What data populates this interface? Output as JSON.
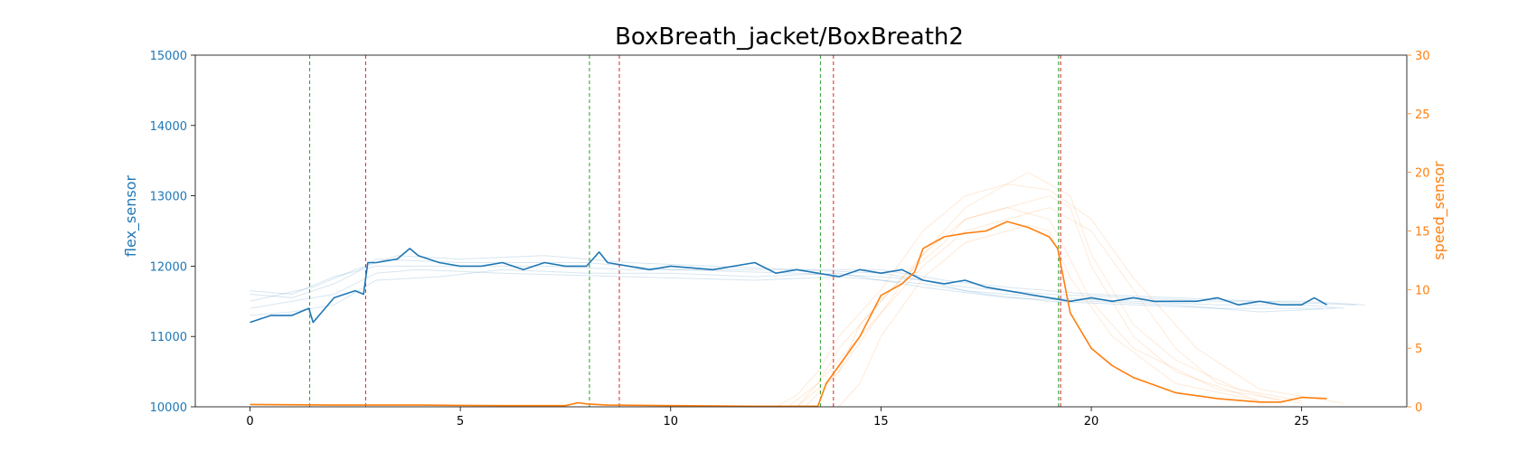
{
  "chart_data": {
    "type": "line",
    "title": "BoxBreath_jacket/BoxBreath2",
    "xlabel": "",
    "ylabel_left": "flex_sensor",
    "ylabel_right": "speed_sensor",
    "xlim": [
      -1.3,
      27.5
    ],
    "ylim_left": [
      10000,
      15000
    ],
    "ylim_right": [
      0,
      30
    ],
    "xticks": [
      0,
      5,
      10,
      15,
      20,
      25
    ],
    "yticks_left": [
      10000,
      11000,
      12000,
      13000,
      14000,
      15000
    ],
    "yticks_right": [
      0,
      5,
      10,
      15,
      20,
      25,
      30
    ],
    "grid": false,
    "colors": {
      "left_axis": "#1f77b4",
      "right_axis": "#ff7f0e",
      "green_marker": "#2ca02c",
      "red_marker": "#d62728"
    },
    "vlines": [
      {
        "x": 1.42,
        "color": "green"
      },
      {
        "x": 2.75,
        "color": "red"
      },
      {
        "x": 8.07,
        "color": "green"
      },
      {
        "x": 8.78,
        "color": "red"
      },
      {
        "x": 13.56,
        "color": "green"
      },
      {
        "x": 13.87,
        "color": "red"
      },
      {
        "x": 19.22,
        "color": "green"
      },
      {
        "x": 19.27,
        "color": "red"
      }
    ],
    "series": [
      {
        "axis": "left",
        "color": "#1f77b4",
        "x": [
          0,
          0.5,
          1.0,
          1.4,
          1.5,
          2.0,
          2.5,
          2.7,
          2.8,
          3.0,
          3.5,
          3.8,
          4.0,
          4.5,
          5.0,
          5.5,
          6.0,
          6.5,
          7.0,
          7.5,
          8.0,
          8.3,
          8.5,
          9.0,
          9.5,
          10.0,
          11.0,
          12.0,
          12.5,
          13.0,
          13.5,
          14.0,
          14.5,
          15.0,
          15.5,
          16.0,
          16.5,
          17.0,
          17.5,
          18.0,
          18.5,
          19.0,
          19.5,
          20.0,
          20.5,
          21.0,
          21.5,
          22.0,
          22.5,
          23.0,
          23.5,
          24.0,
          24.5,
          25.0,
          25.3,
          25.6
        ],
        "y": [
          11200,
          11300,
          11300,
          11400,
          11200,
          11550,
          11650,
          11600,
          12050,
          12050,
          12100,
          12250,
          12150,
          12050,
          12000,
          12000,
          12050,
          11950,
          12050,
          12000,
          12000,
          12200,
          12050,
          12000,
          11950,
          12000,
          11950,
          12050,
          11900,
          11950,
          11900,
          11850,
          11950,
          11900,
          11950,
          11800,
          11750,
          11800,
          11700,
          11650,
          11600,
          11550,
          11500,
          11550,
          11500,
          11550,
          11500,
          11500,
          11500,
          11550,
          11450,
          11500,
          11450,
          11450,
          11550,
          11450
        ]
      },
      {
        "axis": "right",
        "color": "#ff7f0e",
        "x": [
          0,
          2,
          4,
          6,
          7.5,
          7.8,
          8.0,
          8.5,
          10,
          12,
          13.5,
          13.7,
          14.0,
          14.5,
          15.0,
          15.5,
          15.8,
          16.0,
          16.5,
          17.0,
          17.5,
          18.0,
          18.5,
          19.0,
          19.2,
          19.5,
          20.0,
          20.5,
          21.0,
          22.0,
          23.0,
          24.0,
          24.5,
          25.0,
          25.6
        ],
        "y": [
          0.2,
          0.15,
          0.15,
          0.1,
          0.1,
          0.35,
          0.25,
          0.15,
          0.1,
          0.05,
          0.05,
          2,
          3.5,
          6,
          9.5,
          10.5,
          11.5,
          13.5,
          14.5,
          14.8,
          15,
          15.8,
          15.3,
          14.5,
          13.5,
          8,
          5,
          3.5,
          2.5,
          1.2,
          0.7,
          0.4,
          0.4,
          0.8,
          0.7
        ]
      }
    ],
    "background_traces": {
      "left": [
        {
          "x": [
            0,
            1,
            2,
            2.5,
            3,
            5,
            8,
            10,
            13,
            15,
            16,
            17,
            19,
            21,
            23,
            25,
            26
          ],
          "y": [
            11600,
            11550,
            11750,
            11900,
            12100,
            12050,
            12050,
            11950,
            11900,
            11850,
            11800,
            11650,
            11550,
            11500,
            11450,
            11450,
            11400
          ]
        },
        {
          "x": [
            0,
            1,
            2,
            3,
            4,
            6,
            9,
            12,
            14,
            16,
            17.5,
            19,
            21,
            23,
            25.5
          ],
          "y": [
            11400,
            11500,
            11600,
            11900,
            11950,
            11900,
            11850,
            11800,
            11850,
            11750,
            11600,
            11500,
            11450,
            11400,
            11400
          ]
        },
        {
          "x": [
            0,
            1.5,
            2.5,
            3.5,
            5,
            7,
            9,
            11,
            13,
            15,
            16.5,
            18,
            20,
            22,
            24,
            26.3
          ],
          "y": [
            11500,
            11700,
            11950,
            12150,
            12100,
            12150,
            12050,
            12000,
            11950,
            11950,
            11800,
            11700,
            11600,
            11550,
            11500,
            11450
          ]
        },
        {
          "x": [
            0,
            1,
            2,
            3,
            4.5,
            6,
            8,
            10,
            12,
            14,
            16,
            18,
            20,
            22,
            24,
            25.8
          ],
          "y": [
            11300,
            11350,
            11450,
            11800,
            11850,
            11950,
            11900,
            11900,
            11850,
            11900,
            11700,
            11550,
            11500,
            11450,
            11350,
            11400
          ]
        },
        {
          "x": [
            0,
            1,
            2,
            3,
            5,
            7,
            9,
            11,
            13,
            15,
            17,
            19,
            21,
            23,
            25,
            26.5
          ],
          "y": [
            11650,
            11600,
            11850,
            12000,
            12000,
            12000,
            11950,
            11950,
            11950,
            11900,
            11700,
            11600,
            11550,
            11500,
            11500,
            11450
          ]
        }
      ],
      "right": [
        {
          "x": [
            12.5,
            13,
            13.5,
            14,
            15,
            16,
            17,
            18,
            18.5,
            19,
            19.5,
            20,
            21,
            22,
            23.5,
            25
          ],
          "y": [
            0,
            1,
            3,
            6,
            10,
            15,
            18,
            19,
            20,
            19,
            18,
            13,
            7,
            4,
            1.5,
            0.5
          ]
        },
        {
          "x": [
            13,
            13.5,
            14,
            15,
            16,
            17,
            18,
            19,
            19.5,
            20,
            21,
            22,
            24
          ],
          "y": [
            0,
            2,
            5,
            9,
            13,
            16,
            17,
            18,
            17,
            12,
            6,
            3,
            0.5
          ]
        },
        {
          "x": [
            12.8,
            13.5,
            14,
            15,
            16,
            17,
            18,
            19,
            20,
            21,
            22,
            23,
            24.5
          ],
          "y": [
            0,
            2,
            4,
            8,
            12,
            15,
            16,
            17,
            15,
            10,
            5,
            2,
            0.5
          ]
        },
        {
          "x": [
            13.2,
            14,
            14.5,
            15.5,
            16.5,
            17,
            18,
            19,
            19.3,
            20,
            21,
            23,
            25
          ],
          "y": [
            0,
            3,
            7,
            11,
            14,
            16,
            17,
            16,
            14,
            9,
            5,
            1.5,
            0.3
          ]
        },
        {
          "x": [
            14,
            14.5,
            15,
            16,
            17,
            18,
            18.5,
            19,
            19.5,
            20.5,
            22,
            24
          ],
          "y": [
            0,
            2,
            6,
            11,
            14,
            15,
            15.5,
            15,
            11,
            6,
            2,
            0.5
          ]
        },
        {
          "x": [
            13,
            14,
            15,
            16,
            17,
            18,
            19,
            20,
            21,
            22.5,
            24,
            26
          ],
          "y": [
            0,
            3,
            8,
            13,
            17,
            19,
            18.5,
            16,
            11,
            5,
            1.5,
            0.3
          ]
        }
      ]
    }
  }
}
